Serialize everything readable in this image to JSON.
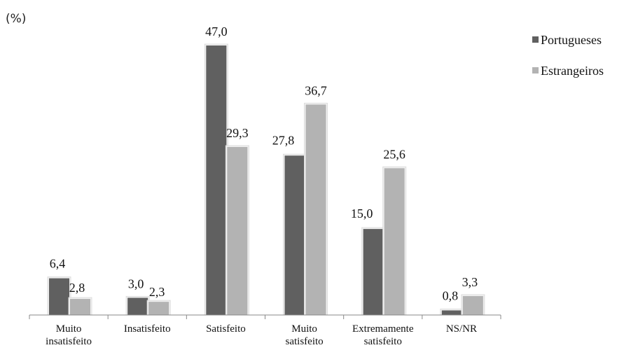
{
  "chart_data": {
    "type": "bar",
    "ylabel": "(%)",
    "categories": [
      [
        "Muito",
        "insatisfeito"
      ],
      [
        "Insatisfeito"
      ],
      [
        "Satisfeito"
      ],
      [
        "Muito",
        "satisfeito"
      ],
      [
        "Extremamente",
        "satisfeito"
      ],
      [
        "NS/NR"
      ]
    ],
    "series": [
      {
        "name": "Portugueses",
        "color": "#606060",
        "values": [
          6.4,
          3.0,
          47.0,
          27.8,
          15.0,
          0.8
        ],
        "labels": [
          "6,4",
          "3,0",
          "47,0",
          "27,8",
          "15,0",
          "0,8"
        ]
      },
      {
        "name": "Estrangeiros",
        "color": "#b3b3b3",
        "values": [
          2.8,
          2.3,
          29.3,
          36.7,
          25.6,
          3.3
        ],
        "labels": [
          "2,8",
          "2,3",
          "29,3",
          "36,7",
          "25,6",
          "3,3"
        ]
      }
    ],
    "ylim": [
      0,
      50
    ],
    "grid": false,
    "legend_position": "top-right"
  }
}
